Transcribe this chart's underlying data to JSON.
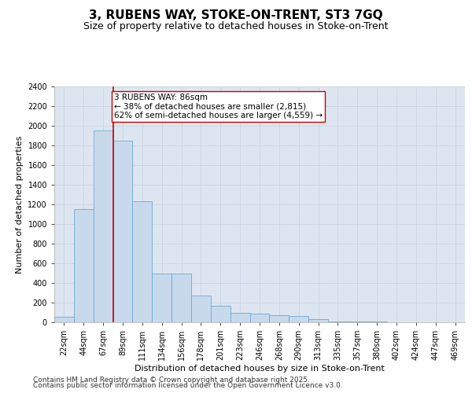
{
  "title1": "3, RUBENS WAY, STOKE-ON-TRENT, ST3 7GQ",
  "title2": "Size of property relative to detached houses in Stoke-on-Trent",
  "xlabel": "Distribution of detached houses by size in Stoke-on-Trent",
  "ylabel": "Number of detached properties",
  "categories": [
    "22sqm",
    "44sqm",
    "67sqm",
    "89sqm",
    "111sqm",
    "134sqm",
    "156sqm",
    "178sqm",
    "201sqm",
    "223sqm",
    "246sqm",
    "268sqm",
    "290sqm",
    "313sqm",
    "335sqm",
    "357sqm",
    "380sqm",
    "402sqm",
    "424sqm",
    "447sqm",
    "469sqm"
  ],
  "values": [
    60,
    1150,
    1950,
    1850,
    1230,
    500,
    500,
    270,
    165,
    100,
    90,
    75,
    65,
    35,
    10,
    5,
    5,
    3,
    2,
    1,
    1
  ],
  "bar_color": "#c8d9ec",
  "bar_edge_color": "#6aaad4",
  "vline_x_index": 3,
  "vline_color": "#cc0000",
  "annotation_text": "3 RUBENS WAY: 86sqm\n← 38% of detached houses are smaller (2,815)\n62% of semi-detached houses are larger (4,559) →",
  "annotation_box_color": "white",
  "annotation_box_edge": "#cc0000",
  "ylim": [
    0,
    2400
  ],
  "yticks": [
    0,
    200,
    400,
    600,
    800,
    1000,
    1200,
    1400,
    1600,
    1800,
    2000,
    2200,
    2400
  ],
  "grid_color": "#c8d4e3",
  "bg_color": "#dde6f0",
  "footer1": "Contains HM Land Registry data © Crown copyright and database right 2025.",
  "footer2": "Contains public sector information licensed under the Open Government Licence v3.0.",
  "title_fontsize": 11,
  "subtitle_fontsize": 9,
  "axis_label_fontsize": 8,
  "tick_fontsize": 7,
  "annotation_fontsize": 7.5,
  "footer_fontsize": 6.5
}
